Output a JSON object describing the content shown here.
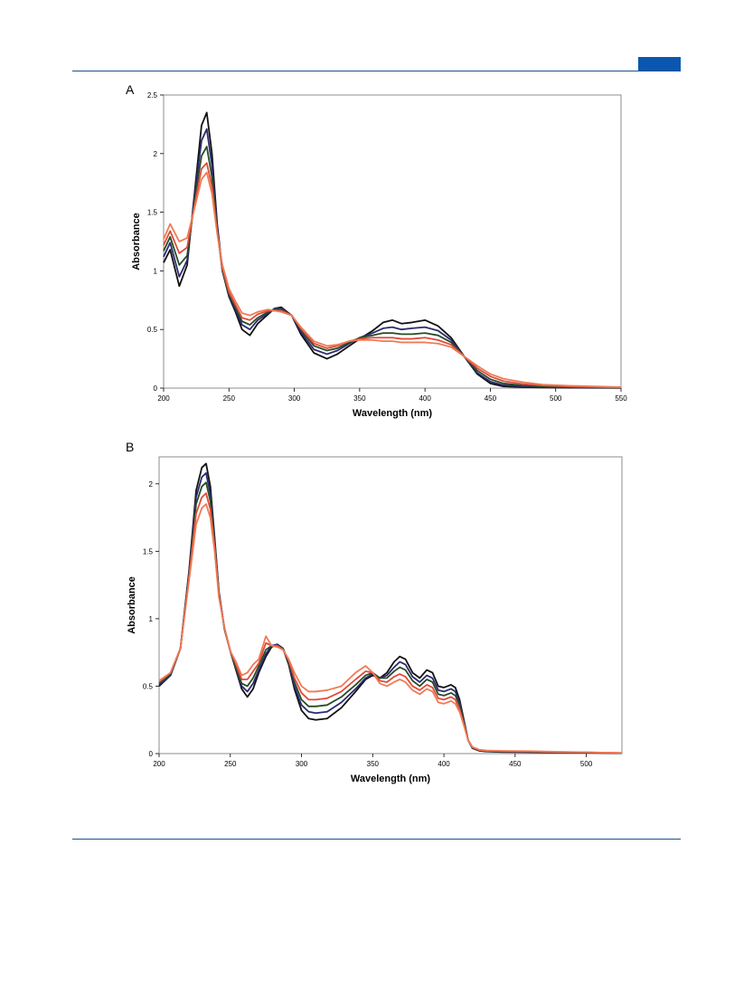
{
  "page": {
    "panels": [
      "A",
      "B"
    ]
  },
  "colors": {
    "rule": "#1f4e8c",
    "tab": "#0b57b0"
  },
  "chart_data": [
    {
      "type": "line",
      "panel": "A",
      "xlabel": "Wavelength (nm)",
      "ylabel": "Absorbance",
      "xlim": [
        200,
        550
      ],
      "ylim": [
        0,
        2.5
      ],
      "xticks": [
        200,
        250,
        300,
        350,
        400,
        450,
        500,
        550
      ],
      "yticks": [
        0,
        0.5,
        1,
        1.5,
        2,
        2.5
      ],
      "ytick_labels": [
        "0",
        "0.5",
        "1",
        "1.5",
        "2",
        "2.5"
      ],
      "grid": false,
      "series": [
        {
          "color": "#111111",
          "x": [
            200,
            205,
            212,
            218,
            224,
            229,
            233,
            237,
            241,
            245,
            250,
            255,
            260,
            266,
            272,
            280,
            285,
            290,
            298,
            305,
            315,
            325,
            333,
            342,
            350,
            360,
            368,
            375,
            382,
            390,
            400,
            410,
            420,
            430,
            440,
            450,
            460,
            475,
            490,
            510,
            530,
            550
          ],
          "y": [
            1.07,
            1.18,
            0.87,
            1.05,
            1.7,
            2.24,
            2.35,
            2.0,
            1.4,
            1.0,
            0.78,
            0.65,
            0.5,
            0.45,
            0.55,
            0.63,
            0.68,
            0.69,
            0.62,
            0.46,
            0.3,
            0.25,
            0.29,
            0.36,
            0.42,
            0.49,
            0.56,
            0.58,
            0.55,
            0.56,
            0.58,
            0.53,
            0.43,
            0.27,
            0.12,
            0.04,
            0.015,
            0.008,
            0.005,
            0.003,
            0.002,
            0.001
          ]
        },
        {
          "color": "#2b2a70",
          "x": [
            200,
            205,
            212,
            218,
            224,
            229,
            233,
            237,
            241,
            245,
            250,
            255,
            260,
            266,
            272,
            280,
            285,
            290,
            298,
            305,
            315,
            325,
            333,
            342,
            350,
            360,
            368,
            375,
            382,
            390,
            400,
            410,
            420,
            430,
            440,
            450,
            460,
            475,
            490,
            510,
            530,
            550
          ],
          "y": [
            1.12,
            1.24,
            0.95,
            1.09,
            1.67,
            2.11,
            2.21,
            1.9,
            1.38,
            1.0,
            0.79,
            0.67,
            0.54,
            0.5,
            0.58,
            0.64,
            0.68,
            0.68,
            0.62,
            0.48,
            0.33,
            0.29,
            0.32,
            0.38,
            0.43,
            0.47,
            0.51,
            0.52,
            0.5,
            0.51,
            0.52,
            0.49,
            0.41,
            0.27,
            0.13,
            0.055,
            0.025,
            0.014,
            0.009,
            0.006,
            0.004,
            0.002
          ]
        },
        {
          "color": "#264d26",
          "x": [
            200,
            205,
            212,
            218,
            224,
            229,
            233,
            237,
            241,
            245,
            250,
            255,
            260,
            266,
            272,
            280,
            285,
            290,
            298,
            305,
            315,
            325,
            333,
            342,
            350,
            360,
            368,
            375,
            382,
            390,
            400,
            410,
            420,
            430,
            440,
            450,
            460,
            475,
            490,
            510,
            530,
            550
          ],
          "y": [
            1.17,
            1.29,
            1.05,
            1.13,
            1.62,
            1.98,
            2.06,
            1.8,
            1.35,
            1.0,
            0.8,
            0.69,
            0.57,
            0.54,
            0.6,
            0.65,
            0.67,
            0.67,
            0.62,
            0.5,
            0.36,
            0.32,
            0.34,
            0.39,
            0.43,
            0.45,
            0.47,
            0.47,
            0.46,
            0.46,
            0.47,
            0.45,
            0.39,
            0.27,
            0.15,
            0.075,
            0.04,
            0.022,
            0.015,
            0.01,
            0.006,
            0.003
          ]
        },
        {
          "color": "#e04a3a",
          "x": [
            200,
            205,
            212,
            218,
            224,
            229,
            233,
            237,
            241,
            245,
            250,
            255,
            260,
            266,
            272,
            280,
            285,
            290,
            298,
            305,
            315,
            325,
            333,
            342,
            350,
            360,
            368,
            375,
            382,
            390,
            400,
            410,
            420,
            430,
            440,
            450,
            460,
            475,
            490,
            510,
            530,
            550
          ],
          "y": [
            1.22,
            1.34,
            1.15,
            1.2,
            1.58,
            1.87,
            1.92,
            1.72,
            1.33,
            1.02,
            0.82,
            0.71,
            0.6,
            0.58,
            0.63,
            0.66,
            0.66,
            0.66,
            0.62,
            0.51,
            0.38,
            0.34,
            0.36,
            0.4,
            0.42,
            0.43,
            0.43,
            0.43,
            0.42,
            0.42,
            0.43,
            0.41,
            0.37,
            0.27,
            0.17,
            0.1,
            0.06,
            0.035,
            0.022,
            0.015,
            0.01,
            0.005
          ]
        },
        {
          "color": "#f07a55",
          "x": [
            200,
            205,
            212,
            218,
            224,
            229,
            233,
            237,
            241,
            245,
            250,
            255,
            260,
            266,
            272,
            280,
            285,
            290,
            298,
            305,
            315,
            325,
            333,
            342,
            350,
            360,
            368,
            375,
            382,
            390,
            400,
            410,
            420,
            430,
            440,
            450,
            460,
            475,
            490,
            510,
            530,
            550
          ],
          "y": [
            1.27,
            1.4,
            1.25,
            1.28,
            1.55,
            1.78,
            1.84,
            1.66,
            1.32,
            1.05,
            0.85,
            0.74,
            0.64,
            0.62,
            0.65,
            0.67,
            0.66,
            0.65,
            0.62,
            0.52,
            0.4,
            0.36,
            0.37,
            0.4,
            0.41,
            0.41,
            0.4,
            0.4,
            0.39,
            0.39,
            0.39,
            0.38,
            0.35,
            0.27,
            0.19,
            0.12,
            0.08,
            0.05,
            0.03,
            0.02,
            0.014,
            0.008
          ]
        }
      ]
    },
    {
      "type": "line",
      "panel": "B",
      "xlabel": "Wavelength (nm)",
      "ylabel": "Absorbance",
      "xlim": [
        200,
        525
      ],
      "ylim": [
        0,
        2.2
      ],
      "xticks": [
        200,
        250,
        300,
        350,
        400,
        450,
        500
      ],
      "yticks": [
        0,
        0.5,
        1,
        1.5,
        2
      ],
      "ytick_labels": [
        "0",
        "0.5",
        "1",
        "1.5",
        "2"
      ],
      "grid": false,
      "series": [
        {
          "color": "#111111",
          "x": [
            200,
            208,
            215,
            221,
            226,
            230,
            233,
            236,
            239,
            242,
            246,
            250,
            254,
            258,
            262,
            266,
            270,
            275,
            279,
            283,
            287,
            291,
            295,
            300,
            305,
            310,
            318,
            328,
            338,
            345,
            350,
            355,
            360,
            365,
            369,
            373,
            378,
            383,
            388,
            392,
            396,
            400,
            405,
            408,
            411,
            414,
            417,
            420,
            425,
            430,
            440,
            460,
            480,
            500,
            525
          ],
          "y": [
            0.5,
            0.58,
            0.78,
            1.35,
            1.95,
            2.12,
            2.15,
            1.98,
            1.6,
            1.2,
            0.92,
            0.76,
            0.62,
            0.48,
            0.42,
            0.48,
            0.6,
            0.72,
            0.79,
            0.81,
            0.78,
            0.66,
            0.48,
            0.32,
            0.26,
            0.25,
            0.26,
            0.34,
            0.46,
            0.55,
            0.58,
            0.56,
            0.6,
            0.68,
            0.72,
            0.7,
            0.6,
            0.56,
            0.62,
            0.6,
            0.5,
            0.49,
            0.51,
            0.49,
            0.4,
            0.25,
            0.1,
            0.04,
            0.02,
            0.015,
            0.012,
            0.01,
            0.008,
            0.006,
            0.003
          ]
        },
        {
          "color": "#2b2a70",
          "x": [
            200,
            208,
            215,
            221,
            226,
            230,
            233,
            236,
            239,
            242,
            246,
            250,
            254,
            258,
            262,
            266,
            270,
            275,
            279,
            283,
            287,
            291,
            295,
            300,
            305,
            310,
            318,
            328,
            338,
            345,
            350,
            355,
            360,
            365,
            369,
            373,
            378,
            383,
            388,
            392,
            396,
            400,
            405,
            408,
            411,
            414,
            417,
            420,
            425,
            430,
            440,
            460,
            480,
            500,
            525
          ],
          "y": [
            0.51,
            0.58,
            0.78,
            1.34,
            1.9,
            2.05,
            2.08,
            1.92,
            1.58,
            1.19,
            0.92,
            0.76,
            0.63,
            0.5,
            0.46,
            0.52,
            0.62,
            0.74,
            0.8,
            0.81,
            0.78,
            0.67,
            0.5,
            0.36,
            0.31,
            0.3,
            0.31,
            0.38,
            0.48,
            0.56,
            0.59,
            0.56,
            0.58,
            0.64,
            0.68,
            0.66,
            0.57,
            0.53,
            0.58,
            0.56,
            0.47,
            0.46,
            0.48,
            0.46,
            0.38,
            0.24,
            0.1,
            0.042,
            0.022,
            0.017,
            0.014,
            0.012,
            0.01,
            0.007,
            0.004
          ]
        },
        {
          "color": "#264d26",
          "x": [
            200,
            208,
            215,
            221,
            226,
            230,
            233,
            236,
            239,
            242,
            246,
            250,
            254,
            258,
            262,
            266,
            270,
            275,
            279,
            283,
            287,
            291,
            295,
            300,
            305,
            310,
            318,
            328,
            338,
            345,
            350,
            355,
            360,
            365,
            369,
            373,
            378,
            383,
            388,
            392,
            396,
            400,
            405,
            408,
            411,
            414,
            417,
            420,
            425,
            430,
            440,
            460,
            480,
            500,
            525
          ],
          "y": [
            0.52,
            0.59,
            0.78,
            1.32,
            1.85,
            1.98,
            2.01,
            1.87,
            1.56,
            1.18,
            0.92,
            0.76,
            0.64,
            0.52,
            0.5,
            0.56,
            0.65,
            0.77,
            0.8,
            0.8,
            0.78,
            0.68,
            0.53,
            0.4,
            0.35,
            0.35,
            0.36,
            0.42,
            0.51,
            0.58,
            0.6,
            0.56,
            0.56,
            0.61,
            0.64,
            0.62,
            0.54,
            0.5,
            0.55,
            0.53,
            0.44,
            0.43,
            0.45,
            0.43,
            0.36,
            0.23,
            0.1,
            0.045,
            0.024,
            0.019,
            0.016,
            0.014,
            0.011,
            0.008,
            0.004
          ]
        },
        {
          "color": "#e04a3a",
          "x": [
            200,
            208,
            215,
            221,
            226,
            230,
            233,
            236,
            239,
            242,
            246,
            250,
            254,
            258,
            262,
            266,
            270,
            275,
            279,
            283,
            287,
            291,
            295,
            300,
            305,
            310,
            318,
            328,
            338,
            345,
            350,
            355,
            360,
            365,
            369,
            373,
            378,
            383,
            388,
            392,
            396,
            400,
            405,
            408,
            411,
            414,
            417,
            420,
            425,
            430,
            440,
            460,
            480,
            500,
            525
          ],
          "y": [
            0.53,
            0.6,
            0.78,
            1.3,
            1.78,
            1.9,
            1.93,
            1.81,
            1.53,
            1.17,
            0.93,
            0.76,
            0.66,
            0.55,
            0.55,
            0.61,
            0.67,
            0.82,
            0.8,
            0.8,
            0.77,
            0.69,
            0.56,
            0.45,
            0.4,
            0.4,
            0.41,
            0.46,
            0.55,
            0.61,
            0.6,
            0.54,
            0.53,
            0.57,
            0.59,
            0.57,
            0.5,
            0.47,
            0.51,
            0.49,
            0.41,
            0.4,
            0.42,
            0.4,
            0.33,
            0.22,
            0.1,
            0.047,
            0.026,
            0.021,
            0.018,
            0.016,
            0.012,
            0.009,
            0.005
          ]
        },
        {
          "color": "#f07a55",
          "x": [
            200,
            208,
            215,
            221,
            226,
            230,
            233,
            236,
            239,
            242,
            246,
            250,
            254,
            258,
            262,
            266,
            270,
            275,
            279,
            283,
            287,
            291,
            295,
            300,
            305,
            310,
            318,
            328,
            338,
            345,
            350,
            355,
            360,
            365,
            369,
            373,
            378,
            383,
            388,
            392,
            396,
            400,
            405,
            408,
            411,
            414,
            417,
            420,
            425,
            430,
            440,
            460,
            480,
            500,
            525
          ],
          "y": [
            0.54,
            0.6,
            0.78,
            1.28,
            1.7,
            1.82,
            1.85,
            1.75,
            1.5,
            1.16,
            0.93,
            0.76,
            0.68,
            0.58,
            0.6,
            0.66,
            0.7,
            0.87,
            0.8,
            0.79,
            0.77,
            0.7,
            0.6,
            0.5,
            0.46,
            0.46,
            0.47,
            0.5,
            0.6,
            0.65,
            0.6,
            0.52,
            0.5,
            0.53,
            0.55,
            0.53,
            0.47,
            0.44,
            0.48,
            0.46,
            0.38,
            0.37,
            0.39,
            0.37,
            0.31,
            0.21,
            0.1,
            0.05,
            0.028,
            0.023,
            0.02,
            0.018,
            0.013,
            0.01,
            0.005
          ]
        }
      ]
    }
  ]
}
